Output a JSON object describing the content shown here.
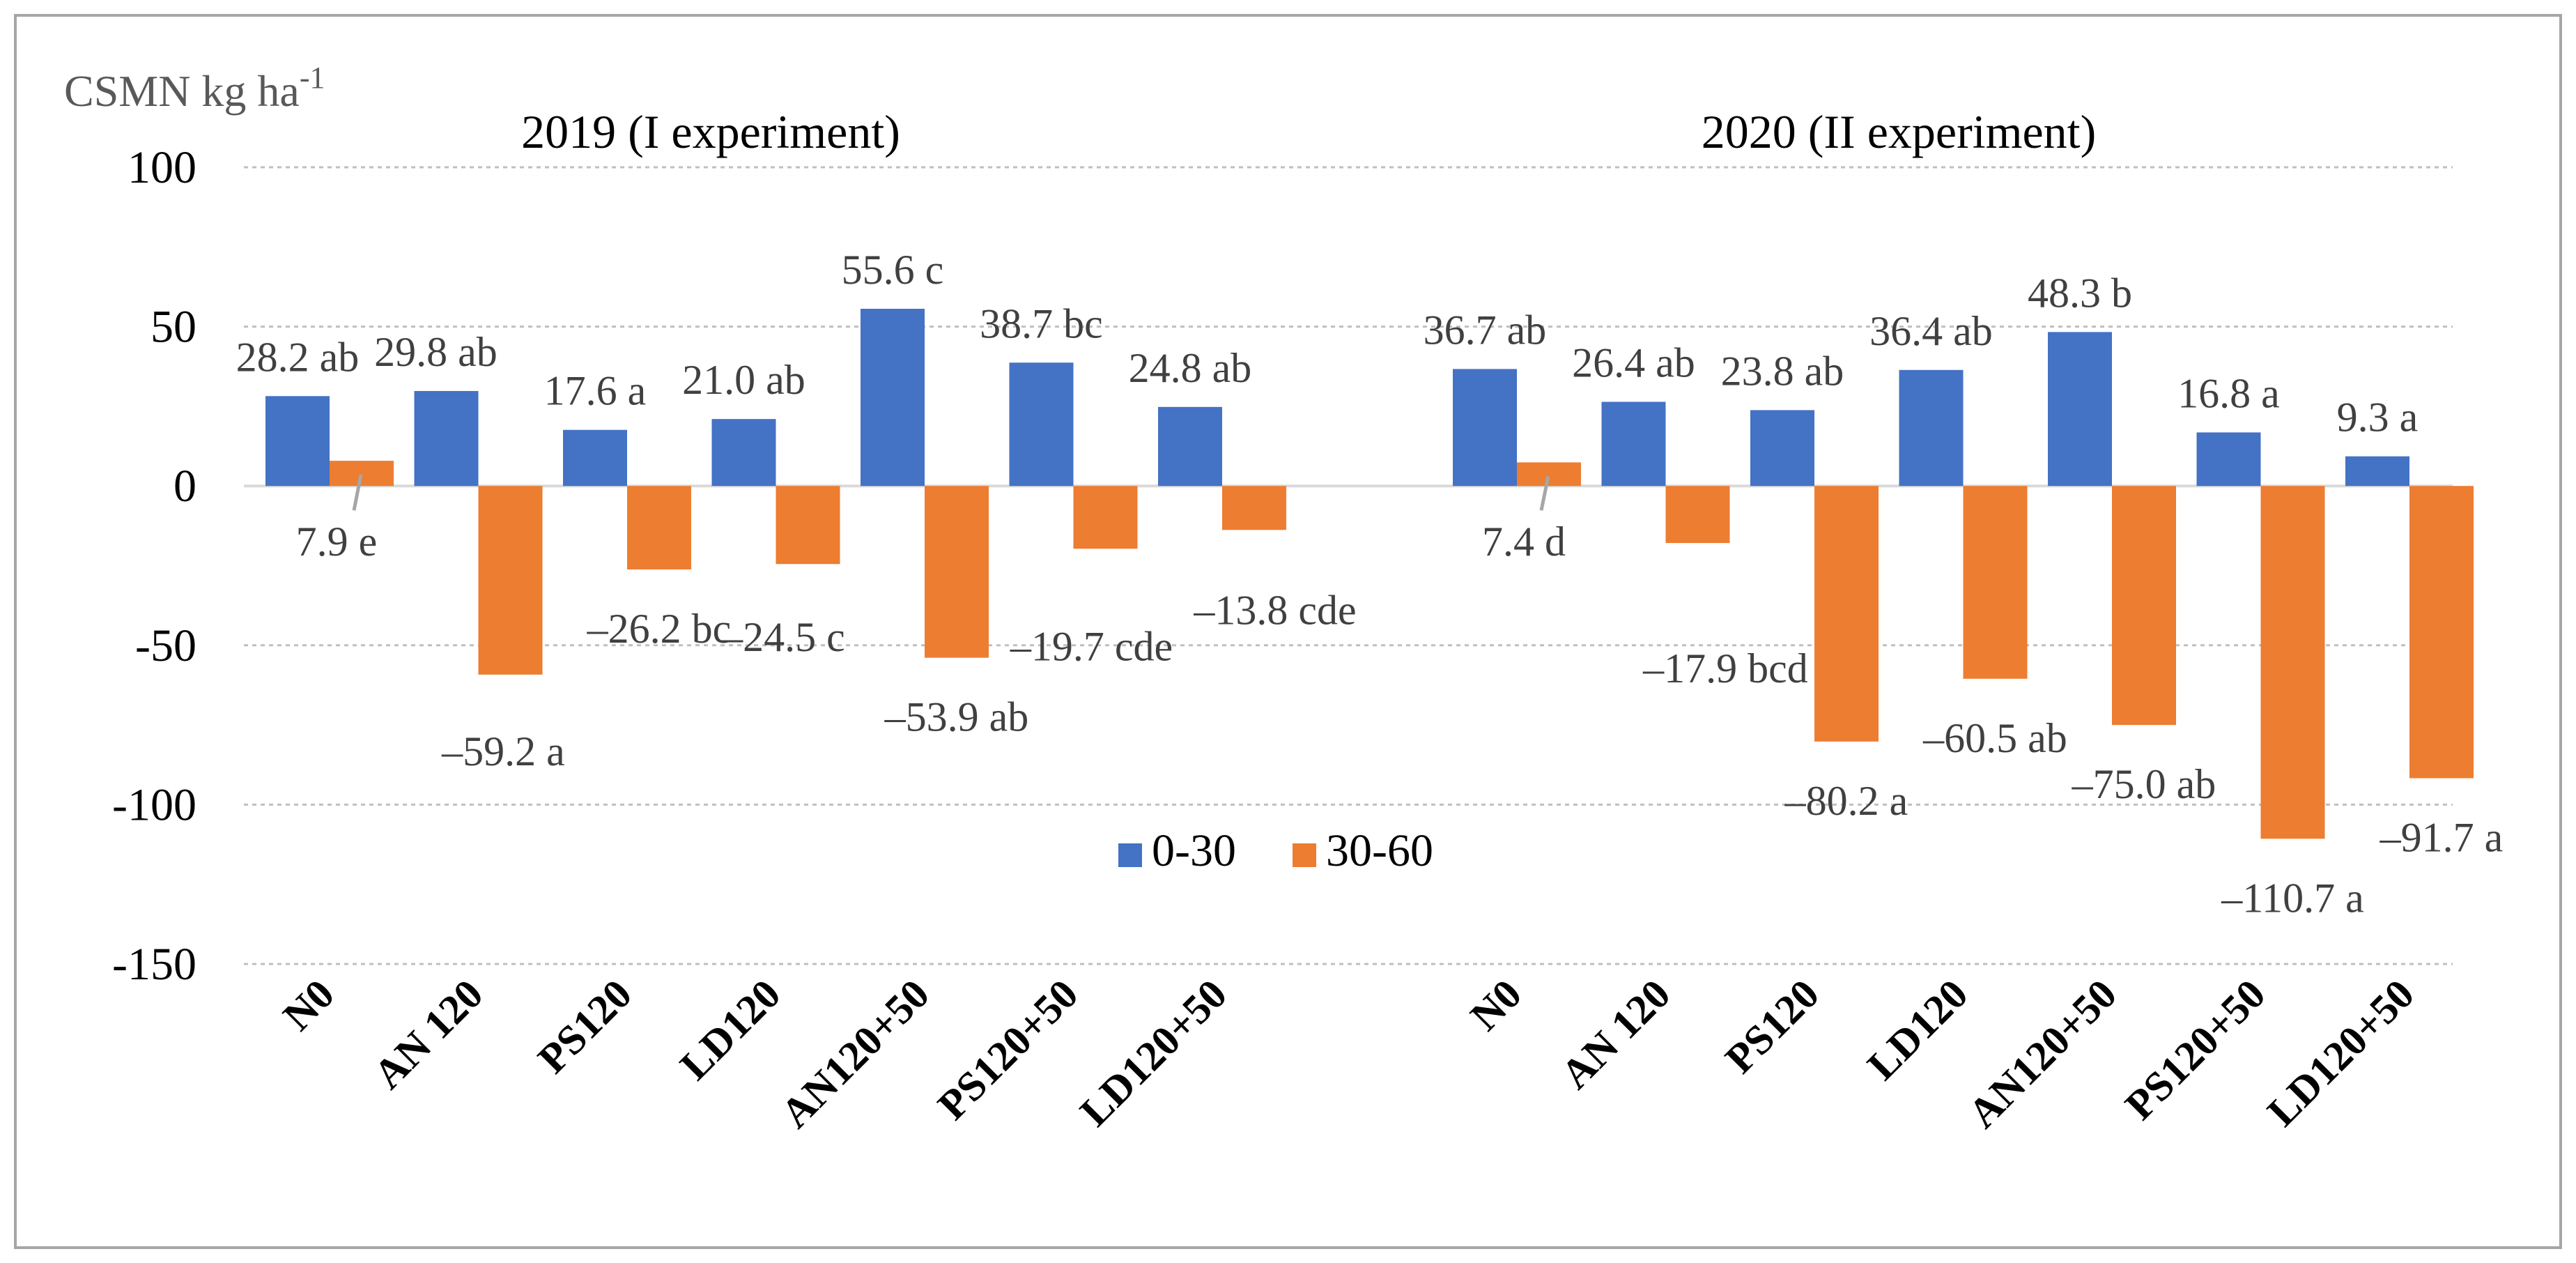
{
  "chart_data": {
    "type": "bar",
    "ylabel": "CSMN kg ha",
    "ylabel_sup": "-1",
    "ylim": [
      -150,
      100
    ],
    "yticks": [
      100,
      50,
      0,
      -50,
      -100,
      -150
    ],
    "grid": true,
    "legend_position": "center",
    "colors": {
      "0-30": "#4472C4",
      "30-60": "#ED7D31",
      "grid": "#BFBFBF",
      "leader": "#A6A6A6"
    },
    "legend": [
      "0-30",
      "30-60"
    ],
    "panels": [
      {
        "title": "2019 (I experiment)",
        "categories": [
          "N0",
          "AN 120",
          "PS120",
          "LD120",
          "AN120+50",
          "PS120+50",
          "LD120+50"
        ],
        "series": [
          {
            "name": "0-30",
            "values": [
              28.2,
              29.8,
              17.6,
              21.0,
              55.6,
              38.7,
              24.8
            ],
            "labels": [
              "28.2 ab",
              "29.8 ab",
              "17.6 a",
              "21.0 ab",
              "55.6 c",
              "38.7 bc",
              "24.8 ab"
            ]
          },
          {
            "name": "30-60",
            "values": [
              7.9,
              -59.2,
              -26.2,
              -24.5,
              -53.9,
              -19.7,
              -13.8
            ],
            "labels": [
              "7.9 e",
              "–59.2 a",
              "–26.2 bc",
              "–24.5 c",
              "–53.9 ab",
              "–19.7 cde",
              "–13.8 cde"
            ]
          }
        ]
      },
      {
        "title": "2020 (II experiment)",
        "categories": [
          "N0",
          "AN 120",
          "PS120",
          "LD120",
          "AN120+50",
          "PS120+50",
          "LD120+50"
        ],
        "series": [
          {
            "name": "0-30",
            "values": [
              36.7,
              26.4,
              23.8,
              36.4,
              48.3,
              16.8,
              9.3
            ],
            "labels": [
              "36.7 ab",
              "26.4 ab",
              "23.8 ab",
              "36.4 ab",
              "48.3 b",
              "16.8 a",
              "9.3 a"
            ]
          },
          {
            "name": "30-60",
            "values": [
              7.4,
              -17.9,
              -80.2,
              -60.5,
              -75.0,
              -110.7,
              -91.7
            ],
            "labels": [
              "7.4 d",
              "–17.9 bcd",
              "–80.2 a",
              "–60.5 ab",
              "–75.0 ab",
              "–110.7 a",
              "–91.7 a"
            ]
          }
        ]
      }
    ]
  }
}
